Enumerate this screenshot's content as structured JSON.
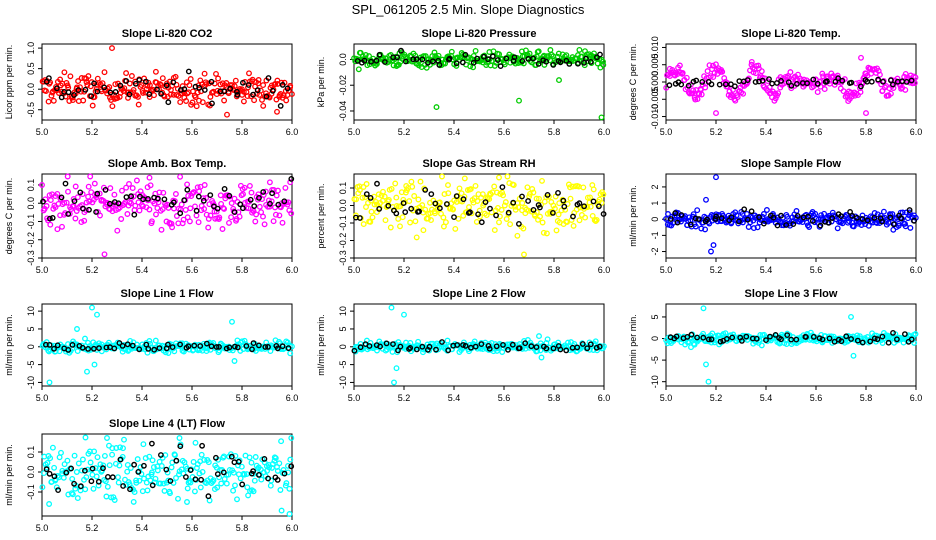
{
  "page": {
    "title": "SPL_061205  2.5 Min. Slope Diagnostics"
  },
  "chart_data": [
    {
      "type": "scatter",
      "title": "Slope Li-820 CO2",
      "ylabel": "Licor ppm per min.",
      "xlim": [
        5.0,
        6.0
      ],
      "ylim": [
        -0.75,
        1.1
      ],
      "xticks": [
        "5.0",
        "5.2",
        "5.4",
        "5.6",
        "5.8",
        "6.0"
      ],
      "yticks": [
        {
          "value": -0.5,
          "label": "-0.5"
        },
        {
          "value": 0.0,
          "label": "0.0"
        },
        {
          "value": 0.5,
          "label": "0.5"
        },
        {
          "value": 1.0,
          "label": "1.0"
        }
      ],
      "color": "#ff0000",
      "series_spread": 0.18,
      "outliers": [
        {
          "x": 5.28,
          "y": 1.0
        },
        {
          "x": 5.74,
          "y": -0.62
        },
        {
          "x": 5.94,
          "y": -0.55
        }
      ]
    },
    {
      "type": "scatter",
      "title": "Slope Li-820 Pressure",
      "ylabel": "kPa per min.",
      "xlim": [
        5.0,
        6.0
      ],
      "ylim": [
        -0.047,
        0.012
      ],
      "xticks": [
        "5.0",
        "5.2",
        "5.4",
        "5.6",
        "5.8",
        "6.0"
      ],
      "yticks": [
        {
          "value": -0.04,
          "label": "-0.04"
        },
        {
          "value": -0.02,
          "label": "-0.02"
        },
        {
          "value": 0.0,
          "label": "0.0"
        }
      ],
      "color": "#00cc00",
      "series_spread": 0.003,
      "outliers": [
        {
          "x": 5.33,
          "y": -0.037
        },
        {
          "x": 5.66,
          "y": -0.032
        },
        {
          "x": 5.82,
          "y": -0.016
        },
        {
          "x": 5.99,
          "y": -0.045
        }
      ]
    },
    {
      "type": "scatter",
      "title": "Slope Li-820 Temp.",
      "ylabel": "degrees C per min.",
      "xlim": [
        5.0,
        6.0
      ],
      "ylim": [
        -0.011,
        0.011
      ],
      "xticks": [
        "5.0",
        "5.2",
        "5.4",
        "5.6",
        "5.8",
        "6.0"
      ],
      "yticks": [
        {
          "value": -0.01,
          "label": "-0.010"
        },
        {
          "value": -0.005,
          "label": "-0.005"
        },
        {
          "value": 0.0,
          "label": "0.000"
        },
        {
          "value": 0.005,
          "label": "0.005"
        },
        {
          "value": 0.01,
          "label": "0.010"
        }
      ],
      "color": "#ff00ff",
      "series_spread": 0.0025,
      "outliers": [
        {
          "x": 5.2,
          "y": -0.009
        },
        {
          "x": 5.78,
          "y": 0.007
        },
        {
          "x": 5.8,
          "y": -0.009
        }
      ]
    },
    {
      "type": "scatter",
      "title": "Slope Amb. Box Temp.",
      "ylabel": "degrees C per min.",
      "xlim": [
        5.0,
        6.0
      ],
      "ylim": [
        -0.3,
        0.16
      ],
      "xticks": [
        "5.0",
        "5.2",
        "5.4",
        "5.6",
        "5.8",
        "6.0"
      ],
      "yticks": [
        {
          "value": -0.3,
          "label": "-0.3"
        },
        {
          "value": -0.2,
          "label": "-0.2"
        },
        {
          "value": -0.1,
          "label": "-0.1"
        },
        {
          "value": 0.0,
          "label": "0.0"
        },
        {
          "value": 0.1,
          "label": "0.1"
        }
      ],
      "color": "#ff00ff",
      "series_spread": 0.06,
      "outliers": [
        {
          "x": 5.43,
          "y": 0.14
        },
        {
          "x": 5.25,
          "y": -0.28
        }
      ]
    },
    {
      "type": "scatter",
      "title": "Slope Gas Stream RH",
      "ylabel": "percent per min.",
      "xlim": [
        5.0,
        6.0
      ],
      "ylim": [
        -0.3,
        0.18
      ],
      "xticks": [
        "5.0",
        "5.2",
        "5.4",
        "5.6",
        "5.8",
        "6.0"
      ],
      "yticks": [
        {
          "value": -0.3,
          "label": "-0.3"
        },
        {
          "value": -0.2,
          "label": "-0.2"
        },
        {
          "value": -0.1,
          "label": "-0.1"
        },
        {
          "value": 0.0,
          "label": "0.0"
        },
        {
          "value": 0.1,
          "label": "0.1"
        }
      ],
      "color": "#ffff00",
      "series_spread": 0.07,
      "outliers": [
        {
          "x": 5.68,
          "y": -0.28
        },
        {
          "x": 5.58,
          "y": 0.16
        }
      ]
    },
    {
      "type": "scatter",
      "title": "Slope Sample Flow",
      "ylabel": "ml/min per min.",
      "xlim": [
        5.0,
        6.0
      ],
      "ylim": [
        -2.4,
        2.8
      ],
      "xticks": [
        "5.0",
        "5.2",
        "5.4",
        "5.6",
        "5.8",
        "6.0"
      ],
      "yticks": [
        {
          "value": -2,
          "label": "-2"
        },
        {
          "value": -1,
          "label": "-1"
        },
        {
          "value": 0,
          "label": "0"
        },
        {
          "value": 1,
          "label": "1"
        },
        {
          "value": 2,
          "label": "2"
        }
      ],
      "color": "#0000ff",
      "series_spread": 0.25,
      "outliers": [
        {
          "x": 5.2,
          "y": 2.6
        },
        {
          "x": 5.18,
          "y": -2.0
        },
        {
          "x": 5.16,
          "y": 1.2
        },
        {
          "x": 5.19,
          "y": -1.6
        }
      ]
    },
    {
      "type": "scatter",
      "title": "Slope Line 1 Flow",
      "ylabel": "ml/min per min.",
      "xlim": [
        5.0,
        6.0
      ],
      "ylim": [
        -11,
        12
      ],
      "xticks": [
        "5.0",
        "5.2",
        "5.4",
        "5.6",
        "5.8",
        "6.0"
      ],
      "yticks": [
        {
          "value": -10,
          "label": "-10"
        },
        {
          "value": -5,
          "label": "-5"
        },
        {
          "value": 0,
          "label": "0"
        },
        {
          "value": 5,
          "label": "5"
        },
        {
          "value": 10,
          "label": "10"
        }
      ],
      "color": "#00ffff",
      "series_spread": 0.8,
      "outliers": [
        {
          "x": 5.2,
          "y": 11
        },
        {
          "x": 5.22,
          "y": 9
        },
        {
          "x": 5.14,
          "y": 5
        },
        {
          "x": 5.18,
          "y": -7
        },
        {
          "x": 5.21,
          "y": -5
        },
        {
          "x": 5.03,
          "y": -10
        },
        {
          "x": 5.76,
          "y": 7
        },
        {
          "x": 5.77,
          "y": -4
        }
      ]
    },
    {
      "type": "scatter",
      "title": "Slope Line 2 Flow",
      "ylabel": "ml/min per min.",
      "xlim": [
        5.0,
        6.0
      ],
      "ylim": [
        -11,
        12
      ],
      "xticks": [
        "5.0",
        "5.2",
        "5.4",
        "5.6",
        "5.8",
        "6.0"
      ],
      "yticks": [
        {
          "value": -10,
          "label": "-10"
        },
        {
          "value": -5,
          "label": "-5"
        },
        {
          "value": 0,
          "label": "0"
        },
        {
          "value": 5,
          "label": "5"
        },
        {
          "value": 10,
          "label": "10"
        }
      ],
      "color": "#00ffff",
      "series_spread": 0.7,
      "outliers": [
        {
          "x": 5.15,
          "y": 11
        },
        {
          "x": 5.2,
          "y": 9
        },
        {
          "x": 5.16,
          "y": -10
        },
        {
          "x": 5.17,
          "y": -6
        },
        {
          "x": 5.75,
          "y": -3
        },
        {
          "x": 5.74,
          "y": 3
        }
      ]
    },
    {
      "type": "scatter",
      "title": "Slope Line 3 Flow",
      "ylabel": "ml/min per min.",
      "xlim": [
        5.0,
        6.0
      ],
      "ylim": [
        -11,
        8
      ],
      "xticks": [
        "5.0",
        "5.2",
        "5.4",
        "5.6",
        "5.8",
        "6.0"
      ],
      "yticks": [
        {
          "value": -10,
          "label": "-10"
        },
        {
          "value": -5,
          "label": "-5"
        },
        {
          "value": 0,
          "label": "0"
        },
        {
          "value": 5,
          "label": "5"
        }
      ],
      "color": "#00ffff",
      "series_spread": 0.6,
      "outliers": [
        {
          "x": 5.15,
          "y": 7
        },
        {
          "x": 5.17,
          "y": -10
        },
        {
          "x": 5.16,
          "y": -6
        },
        {
          "x": 5.74,
          "y": 5
        },
        {
          "x": 5.75,
          "y": -4
        },
        {
          "x": 5.1,
          "y": -2
        }
      ]
    },
    {
      "type": "scatter",
      "title": "Slope Line 4 (LT) Flow",
      "ylabel": "ml/min per min.",
      "xlim": [
        5.0,
        6.0
      ],
      "ylim": [
        -0.22,
        0.19
      ],
      "xticks": [
        "5.0",
        "5.2",
        "5.4",
        "5.6",
        "5.8",
        "6.0"
      ],
      "yticks": [
        {
          "value": -0.1,
          "label": "-0.1"
        },
        {
          "value": 0.0,
          "label": "0.0"
        },
        {
          "value": 0.1,
          "label": "0.1"
        }
      ],
      "color": "#00ffff",
      "series_spread": 0.07,
      "outliers": [
        {
          "x": 5.26,
          "y": 0.17
        },
        {
          "x": 5.55,
          "y": 0.17
        },
        {
          "x": 5.99,
          "y": -0.21
        },
        {
          "x": 5.58,
          "y": -0.15
        }
      ]
    }
  ]
}
